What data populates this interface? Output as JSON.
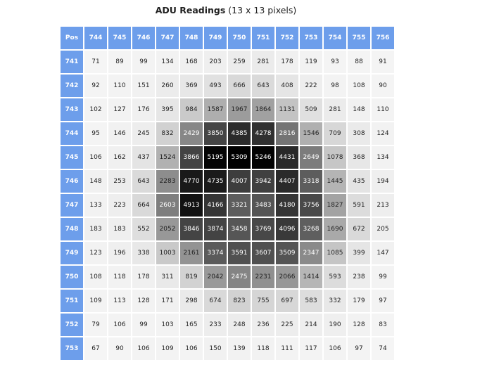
{
  "title": {
    "bold": "ADU Readings",
    "rest": "(13 x 13 pixels)"
  },
  "corner_label": "Pos",
  "columns": [
    "744",
    "745",
    "746",
    "747",
    "748",
    "749",
    "750",
    "751",
    "752",
    "753",
    "754",
    "755",
    "756"
  ],
  "rows": [
    {
      "label": "741",
      "values": [
        71,
        89,
        99,
        134,
        168,
        203,
        259,
        281,
        178,
        119,
        93,
        88,
        91
      ]
    },
    {
      "label": "742",
      "values": [
        92,
        110,
        151,
        260,
        369,
        493,
        666,
        643,
        408,
        222,
        98,
        108,
        90
      ]
    },
    {
      "label": "743",
      "values": [
        102,
        127,
        176,
        395,
        984,
        1587,
        1967,
        1864,
        1131,
        509,
        281,
        148,
        110
      ]
    },
    {
      "label": "744",
      "values": [
        95,
        146,
        245,
        832,
        2429,
        3850,
        4385,
        4278,
        2816,
        1546,
        709,
        308,
        124
      ]
    },
    {
      "label": "745",
      "values": [
        106,
        162,
        437,
        1524,
        3866,
        5195,
        5309,
        5246,
        4431,
        2649,
        1078,
        368,
        134
      ]
    },
    {
      "label": "746",
      "values": [
        148,
        253,
        643,
        2283,
        4770,
        4735,
        4007,
        3942,
        4407,
        3318,
        1445,
        435,
        194
      ]
    },
    {
      "label": "747",
      "values": [
        133,
        223,
        664,
        2603,
        4913,
        4166,
        3321,
        3483,
        4180,
        3756,
        1827,
        591,
        213
      ]
    },
    {
      "label": "748",
      "values": [
        183,
        183,
        552,
        2052,
        3846,
        3874,
        3458,
        3769,
        4096,
        3268,
        1690,
        672,
        205
      ]
    },
    {
      "label": "749",
      "values": [
        123,
        196,
        338,
        1003,
        2161,
        3374,
        3591,
        3607,
        3509,
        2347,
        1085,
        399,
        147
      ]
    },
    {
      "label": "750",
      "values": [
        108,
        118,
        178,
        311,
        819,
        2042,
        2475,
        2231,
        2066,
        1414,
        593,
        238,
        99
      ]
    },
    {
      "label": "751",
      "values": [
        109,
        113,
        128,
        171,
        298,
        674,
        823,
        755,
        697,
        583,
        332,
        179,
        97
      ]
    },
    {
      "label": "752",
      "values": [
        79,
        106,
        99,
        103,
        165,
        233,
        248,
        236,
        225,
        214,
        190,
        128,
        83
      ]
    },
    {
      "label": "753",
      "values": [
        67,
        90,
        106,
        109,
        106,
        150,
        139,
        118,
        111,
        117,
        106,
        97,
        74
      ]
    }
  ],
  "scale": {
    "max": 5309,
    "header_color": "#6d9eeb"
  }
}
